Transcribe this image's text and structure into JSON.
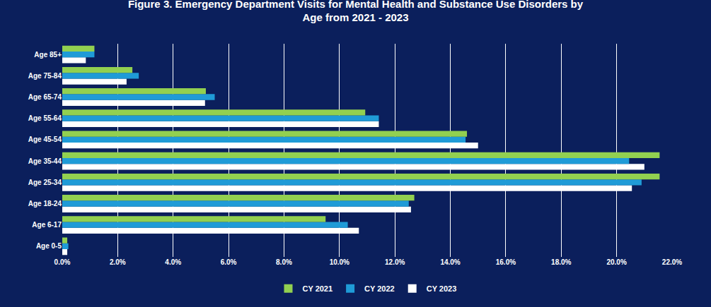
{
  "chart_data": {
    "type": "bar",
    "orientation": "horizontal",
    "title": "Figure 3. Emergency Department Visits for Mental Health and Substance Use Disorders by Age from 2021 - 2023",
    "categories": [
      "Age 0-5",
      "Age 6-17",
      "Age 18-24",
      "Age 25-34",
      "Age 35-44",
      "Age 45-54",
      "Age 55-64",
      "Age 65-74",
      "Age 75-84",
      "Age 85+"
    ],
    "series": [
      {
        "name": "CY 2021",
        "color": "#92d050",
        "values": [
          0.18,
          9.5,
          12.7,
          21.55,
          21.55,
          14.6,
          10.93,
          5.18,
          2.53,
          1.16
        ]
      },
      {
        "name": "CY 2022",
        "color": "#1f9bd7",
        "values": [
          0.22,
          10.3,
          12.5,
          20.9,
          20.45,
          14.55,
          11.42,
          5.5,
          2.76,
          1.16
        ]
      },
      {
        "name": "CY 2023",
        "color": "#ffffff",
        "values": [
          0.18,
          10.7,
          12.58,
          20.55,
          21.0,
          15.0,
          11.42,
          5.15,
          2.32,
          0.85
        ]
      }
    ],
    "xlim": [
      0,
      22
    ],
    "xticks": [
      {
        "value": 0,
        "label": "0.0%"
      },
      {
        "value": 2,
        "label": "2.0%"
      },
      {
        "value": 4,
        "label": "4.0%"
      },
      {
        "value": 6,
        "label": "6.0%"
      },
      {
        "value": 8,
        "label": "8.0%"
      },
      {
        "value": 10,
        "label": "10.0%"
      },
      {
        "value": 12,
        "label": "12.0%"
      },
      {
        "value": 14,
        "label": "14.0%"
      },
      {
        "value": 16,
        "label": "16.0%"
      },
      {
        "value": 18,
        "label": "18.0%"
      },
      {
        "value": 20,
        "label": "20.0%"
      },
      {
        "value": 22,
        "label": "22.0%"
      }
    ],
    "grid": true,
    "legend": "bottom"
  }
}
